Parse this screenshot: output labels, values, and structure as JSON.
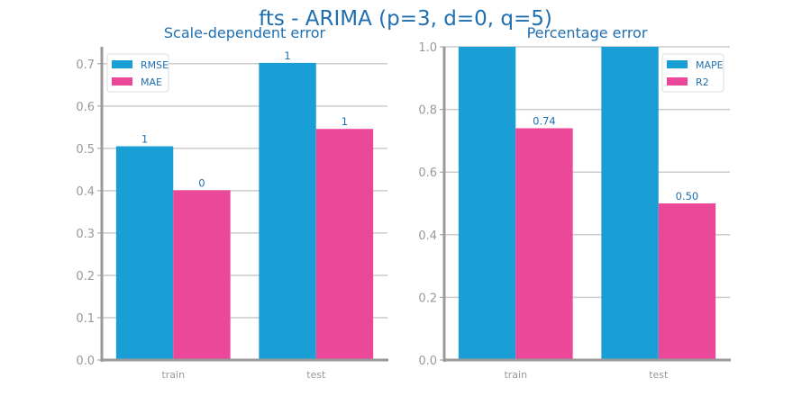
{
  "figure": {
    "title": "fts - ARIMA (p=3, d=0, q=5)"
  },
  "colors": {
    "title": "#1f6fb0",
    "axis": "#999999",
    "grid": "#cccccc",
    "tick_label": "#999999",
    "bar_label": "#1f6fb0",
    "series_1": "#1a9ed6",
    "series_2": "#ec4899"
  },
  "chart_data": [
    {
      "type": "bar",
      "title": "Scale-dependent error",
      "categories": [
        "train",
        "test"
      ],
      "series": [
        {
          "name": "RMSE",
          "values": [
            0.505,
            0.702
          ],
          "labels": [
            "1",
            "1"
          ]
        },
        {
          "name": "MAE",
          "values": [
            0.401,
            0.546
          ],
          "labels": [
            "0",
            "1"
          ]
        }
      ],
      "ylim": [
        0,
        0.74
      ],
      "yticks": [
        0.0,
        0.1,
        0.2,
        0.3,
        0.4,
        0.5,
        0.6,
        0.7
      ],
      "ytick_labels": [
        "0.0",
        "0.1",
        "0.2",
        "0.3",
        "0.4",
        "0.5",
        "0.6",
        "0.7"
      ],
      "xlabel": "",
      "ylabel": "",
      "grid": true,
      "legend": "top-left"
    },
    {
      "type": "bar",
      "title": "Percentage error",
      "categories": [
        "train",
        "test"
      ],
      "series": [
        {
          "name": "MAPE",
          "values": [
            1.0,
            1.0
          ],
          "labels": [
            "",
            ""
          ]
        },
        {
          "name": "R2",
          "values": [
            0.74,
            0.5
          ],
          "labels": [
            "0.74",
            "0.50"
          ]
        }
      ],
      "ylim": [
        0,
        1.0
      ],
      "yticks": [
        0.0,
        0.2,
        0.4,
        0.6,
        0.8,
        1.0
      ],
      "ytick_labels": [
        "0.0",
        "0.2",
        "0.4",
        "0.6",
        "0.8",
        "1.0"
      ],
      "xlabel": "",
      "ylabel": "",
      "grid": true,
      "legend": "top-right"
    }
  ]
}
